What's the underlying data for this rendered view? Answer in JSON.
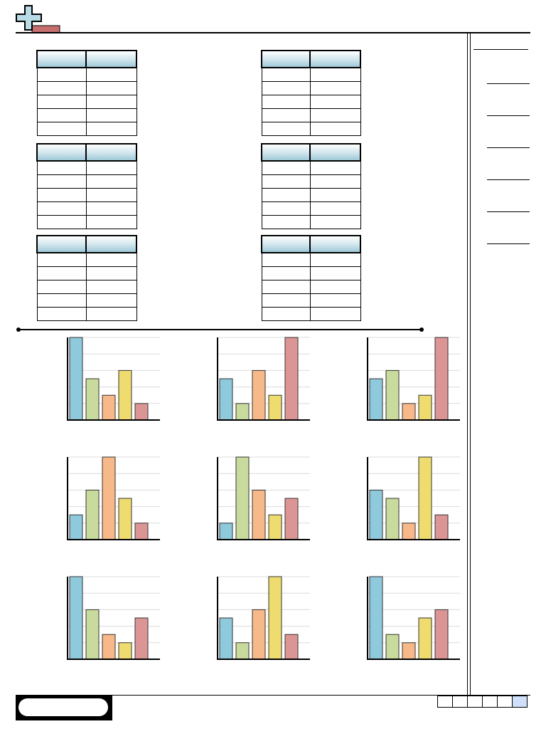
{
  "logo": {
    "icon": "plus-sign-icon",
    "colors": {
      "plus": "#a8d3df",
      "bar": "#c76e6e"
    }
  },
  "tables": [
    {
      "headers": [
        "",
        ""
      ],
      "rows": [
        [
          "",
          ""
        ],
        [
          "",
          ""
        ],
        [
          "",
          ""
        ],
        [
          "",
          ""
        ],
        [
          "",
          ""
        ]
      ]
    },
    {
      "headers": [
        "",
        ""
      ],
      "rows": [
        [
          "",
          ""
        ],
        [
          "",
          ""
        ],
        [
          "",
          ""
        ],
        [
          "",
          ""
        ],
        [
          "",
          ""
        ]
      ]
    },
    {
      "headers": [
        "",
        ""
      ],
      "rows": [
        [
          "",
          ""
        ],
        [
          "",
          ""
        ],
        [
          "",
          ""
        ],
        [
          "",
          ""
        ],
        [
          "",
          ""
        ]
      ]
    },
    {
      "headers": [
        "",
        ""
      ],
      "rows": [
        [
          "",
          ""
        ],
        [
          "",
          ""
        ],
        [
          "",
          ""
        ],
        [
          "",
          ""
        ],
        [
          "",
          ""
        ]
      ]
    },
    {
      "headers": [
        "",
        ""
      ],
      "rows": [
        [
          "",
          ""
        ],
        [
          "",
          ""
        ],
        [
          "",
          ""
        ],
        [
          "",
          ""
        ],
        [
          "",
          ""
        ]
      ]
    },
    {
      "headers": [
        "",
        ""
      ],
      "rows": [
        [
          "",
          ""
        ],
        [
          "",
          ""
        ],
        [
          "",
          ""
        ],
        [
          "",
          ""
        ],
        [
          "",
          ""
        ]
      ]
    }
  ],
  "answer_lines": 7,
  "score_boxes": 6,
  "chart_data": [
    {
      "type": "bar",
      "ylim": [
        0,
        5
      ],
      "grid": true,
      "values": [
        5,
        2.5,
        1.5,
        3,
        1
      ],
      "colors": [
        "#8ec9dc",
        "#c8da9c",
        "#f8b98a",
        "#eedd6e",
        "#dc9595"
      ]
    },
    {
      "type": "bar",
      "ylim": [
        0,
        5
      ],
      "grid": true,
      "values": [
        2.5,
        1,
        3,
        1.5,
        5
      ],
      "colors": [
        "#8ec9dc",
        "#c8da9c",
        "#f8b98a",
        "#eedd6e",
        "#dc9595"
      ]
    },
    {
      "type": "bar",
      "ylim": [
        0,
        5
      ],
      "grid": true,
      "values": [
        2.5,
        3,
        1,
        1.5,
        5
      ],
      "colors": [
        "#8ec9dc",
        "#c8da9c",
        "#f8b98a",
        "#eedd6e",
        "#dc9595"
      ]
    },
    {
      "type": "bar",
      "ylim": [
        0,
        5
      ],
      "grid": true,
      "values": [
        1.5,
        3,
        5,
        2.5,
        1
      ],
      "colors": [
        "#8ec9dc",
        "#c8da9c",
        "#f8b98a",
        "#eedd6e",
        "#dc9595"
      ]
    },
    {
      "type": "bar",
      "ylim": [
        0,
        5
      ],
      "grid": true,
      "values": [
        1,
        5,
        3,
        1.5,
        2.5
      ],
      "colors": [
        "#8ec9dc",
        "#c8da9c",
        "#f8b98a",
        "#eedd6e",
        "#dc9595"
      ]
    },
    {
      "type": "bar",
      "ylim": [
        0,
        5
      ],
      "grid": true,
      "values": [
        3,
        2.5,
        1,
        5,
        1.5
      ],
      "colors": [
        "#8ec9dc",
        "#c8da9c",
        "#f8b98a",
        "#eedd6e",
        "#dc9595"
      ]
    },
    {
      "type": "bar",
      "ylim": [
        0,
        5
      ],
      "grid": true,
      "values": [
        5,
        3,
        1.5,
        1,
        2.5
      ],
      "colors": [
        "#8ec9dc",
        "#c8da9c",
        "#f8b98a",
        "#eedd6e",
        "#dc9595"
      ]
    },
    {
      "type": "bar",
      "ylim": [
        0,
        5
      ],
      "grid": true,
      "values": [
        2.5,
        1,
        3,
        5,
        1.5
      ],
      "colors": [
        "#8ec9dc",
        "#c8da9c",
        "#f8b98a",
        "#eedd6e",
        "#dc9595"
      ]
    },
    {
      "type": "bar",
      "ylim": [
        0,
        5
      ],
      "grid": true,
      "values": [
        5,
        1.5,
        1,
        2.5,
        3
      ],
      "colors": [
        "#8ec9dc",
        "#c8da9c",
        "#f8b98a",
        "#eedd6e",
        "#dc9595"
      ]
    }
  ]
}
